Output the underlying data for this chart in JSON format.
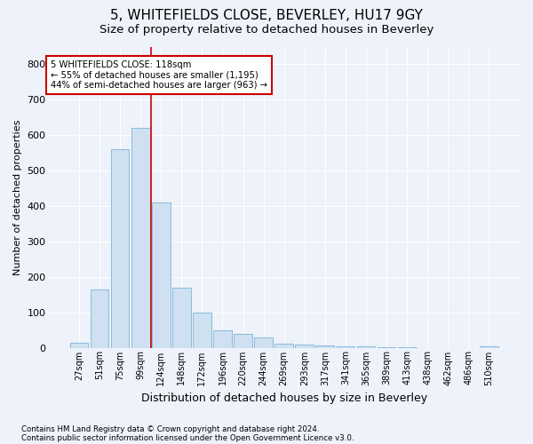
{
  "title": "5, WHITEFIELDS CLOSE, BEVERLEY, HU17 9GY",
  "subtitle": "Size of property relative to detached houses in Beverley",
  "xlabel": "Distribution of detached houses by size in Beverley",
  "ylabel": "Number of detached properties",
  "footnote1": "Contains HM Land Registry data © Crown copyright and database right 2024.",
  "footnote2": "Contains public sector information licensed under the Open Government Licence v3.0.",
  "annotation_line1": "5 WHITEFIELDS CLOSE: 118sqm",
  "annotation_line2": "← 55% of detached houses are smaller (1,195)",
  "annotation_line3": "44% of semi-detached houses are larger (963) →",
  "bar_color": "#cfe0f0",
  "bar_edge_color": "#7ab4d8",
  "vline_color": "#cc0000",
  "vline_position": 3.5,
  "categories": [
    "27sqm",
    "51sqm",
    "75sqm",
    "99sqm",
    "124sqm",
    "148sqm",
    "172sqm",
    "196sqm",
    "220sqm",
    "244sqm",
    "269sqm",
    "293sqm",
    "317sqm",
    "341sqm",
    "365sqm",
    "389sqm",
    "413sqm",
    "438sqm",
    "462sqm",
    "486sqm",
    "510sqm"
  ],
  "values": [
    15,
    165,
    560,
    620,
    410,
    170,
    100,
    50,
    38,
    28,
    12,
    10,
    6,
    5,
    4,
    1,
    1,
    0,
    0,
    0,
    5
  ],
  "ylim": [
    0,
    850
  ],
  "yticks": [
    0,
    100,
    200,
    300,
    400,
    500,
    600,
    700,
    800
  ],
  "background_color": "#eef2fa",
  "plot_bg_color": "#eef2fa",
  "grid_color": "#ffffff",
  "title_fontsize": 11,
  "subtitle_fontsize": 9.5,
  "annotation_box_color": "#ffffff",
  "annotation_box_edge": "#cc0000"
}
